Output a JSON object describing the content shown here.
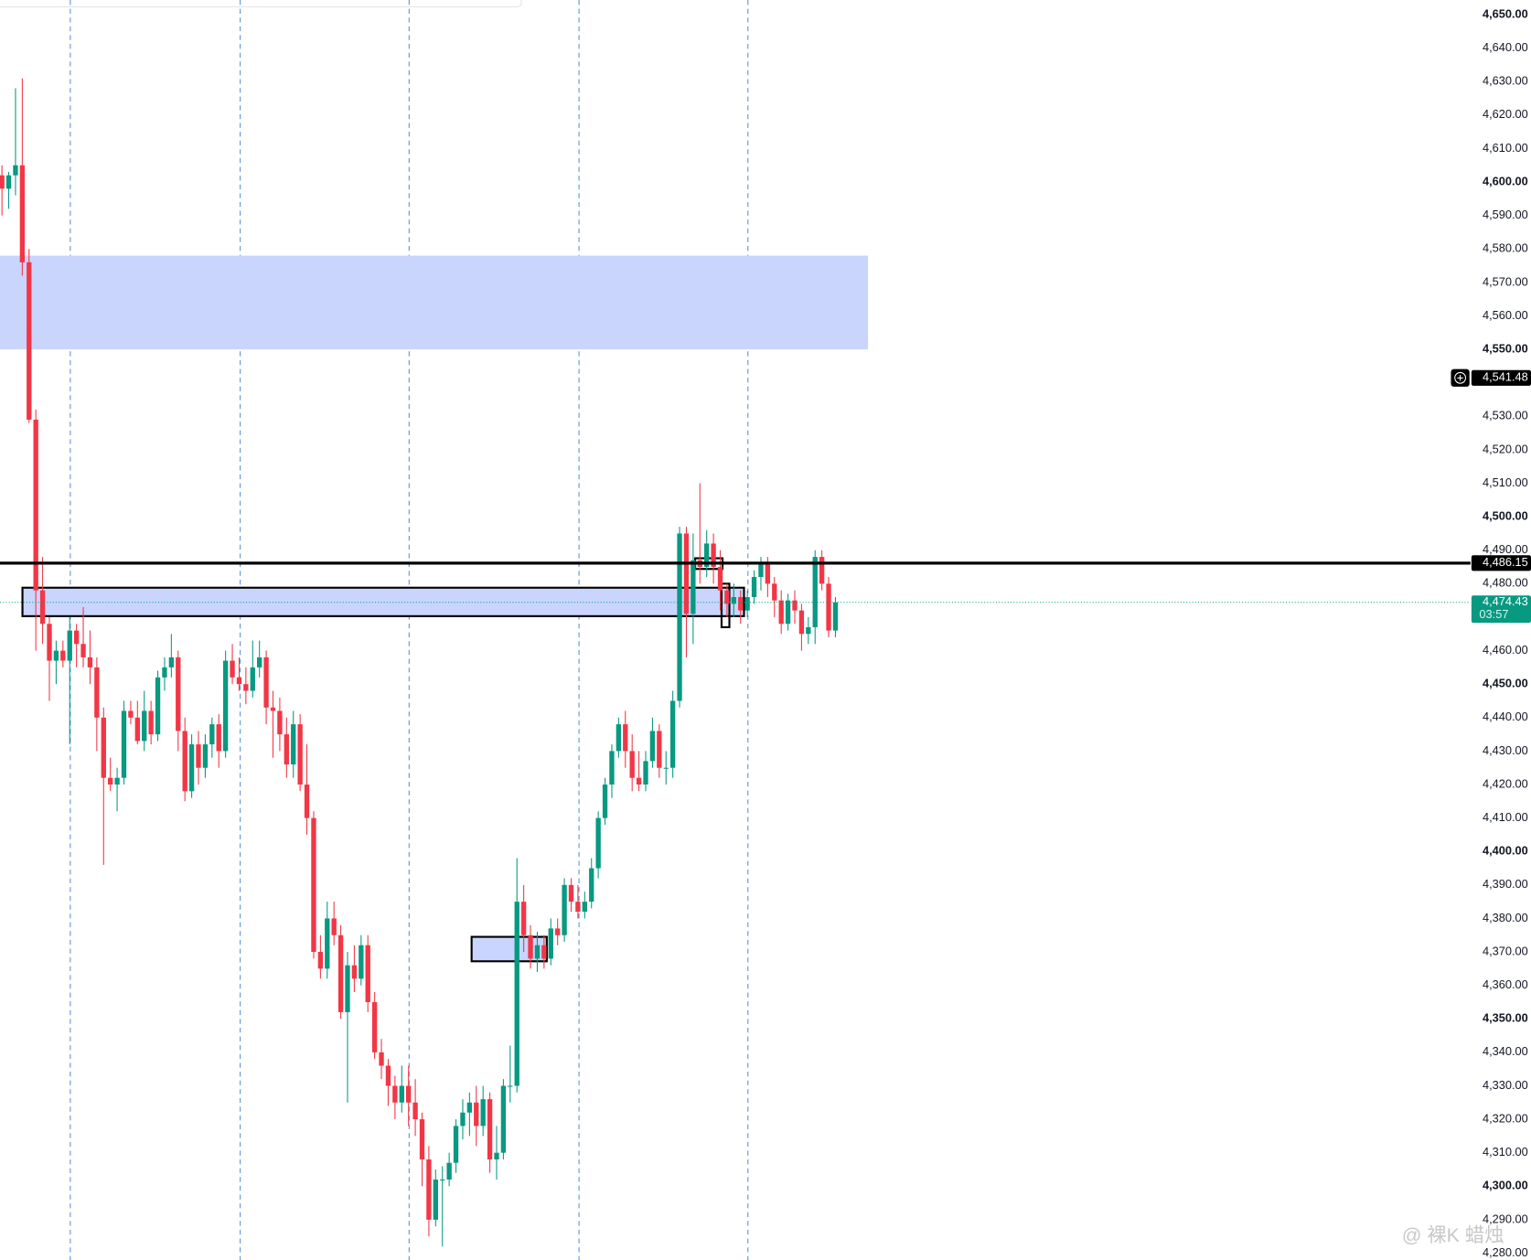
{
  "chart_data": {
    "type": "candlestick",
    "ylim": [
      4280,
      4650
    ],
    "yticks": [
      {
        "value": 4650,
        "label": "4,650.00"
      },
      {
        "value": 4640,
        "label": "4,640.00"
      },
      {
        "value": 4630,
        "label": "4,630.00"
      },
      {
        "value": 4620,
        "label": "4,620.00"
      },
      {
        "value": 4610,
        "label": "4,610.00"
      },
      {
        "value": 4600,
        "label": "4,600.00"
      },
      {
        "value": 4590,
        "label": "4,590.00"
      },
      {
        "value": 4580,
        "label": "4,580.00"
      },
      {
        "value": 4570,
        "label": "4,570.00"
      },
      {
        "value": 4560,
        "label": "4,560.00"
      },
      {
        "value": 4550,
        "label": "4,550.00"
      },
      {
        "value": 4530,
        "label": "4,530.00"
      },
      {
        "value": 4520,
        "label": "4,520.00"
      },
      {
        "value": 4510,
        "label": "4,510.00"
      },
      {
        "value": 4500,
        "label": "4,500.00"
      },
      {
        "value": 4490,
        "label": "4,490.00"
      },
      {
        "value": 4480,
        "label": "4,480.00"
      },
      {
        "value": 4460,
        "label": "4,460.00"
      },
      {
        "value": 4450,
        "label": "4,450.00"
      },
      {
        "value": 4440,
        "label": "4,440.00"
      },
      {
        "value": 4430,
        "label": "4,430.00"
      },
      {
        "value": 4420,
        "label": "4,420.00"
      },
      {
        "value": 4410,
        "label": "4,410.00"
      },
      {
        "value": 4400,
        "label": "4,400.00"
      },
      {
        "value": 4390,
        "label": "4,390.00"
      },
      {
        "value": 4380,
        "label": "4,380.00"
      },
      {
        "value": 4370,
        "label": "4,370.00"
      },
      {
        "value": 4360,
        "label": "4,360.00"
      },
      {
        "value": 4350,
        "label": "4,350.00"
      },
      {
        "value": 4340,
        "label": "4,340.00"
      },
      {
        "value": 4330,
        "label": "4,330.00"
      },
      {
        "value": 4320,
        "label": "4,320.00"
      },
      {
        "value": 4310,
        "label": "4,310.00"
      },
      {
        "value": 4300,
        "label": "4,300.00"
      },
      {
        "value": 4290,
        "label": "4,290.00"
      },
      {
        "value": 4280,
        "label": "4,280.00"
      }
    ],
    "grid": false,
    "up_color": "#089981",
    "down_color": "#f23645",
    "zone_color": "#c9d5fc",
    "candles": [
      [
        4602,
        4605,
        4590,
        4598
      ],
      [
        4598,
        4603,
        4592,
        4602
      ],
      [
        4602,
        4628,
        4596,
        4605
      ],
      [
        4605,
        4631,
        4572,
        4576
      ],
      [
        4576,
        4580,
        4528,
        4529
      ],
      [
        4529,
        4532,
        4460,
        4478
      ],
      [
        4478,
        4488,
        4462,
        4468
      ],
      [
        4468,
        4470,
        4445,
        4457
      ],
      [
        4457,
        4463,
        4450,
        4460
      ],
      [
        4460,
        4463,
        4455,
        4457
      ],
      [
        4457,
        4470,
        4432,
        4466
      ],
      [
        4466,
        4468,
        4455,
        4462
      ],
      [
        4462,
        4473,
        4455,
        4458
      ],
      [
        4458,
        4466,
        4450,
        4455
      ],
      [
        4455,
        4458,
        4430,
        4440
      ],
      [
        4440,
        4443,
        4396,
        4422
      ],
      [
        4422,
        4428,
        4418,
        4420
      ],
      [
        4420,
        4425,
        4412,
        4422
      ],
      [
        4422,
        4445,
        4420,
        4442
      ],
      [
        4442,
        4445,
        4438,
        4440
      ],
      [
        4440,
        4445,
        4432,
        4433
      ],
      [
        4433,
        4448,
        4430,
        4442
      ],
      [
        4442,
        4445,
        4432,
        4435
      ],
      [
        4435,
        4454,
        4433,
        4452
      ],
      [
        4452,
        4458,
        4448,
        4455
      ],
      [
        4455,
        4465,
        4452,
        4458
      ],
      [
        4458,
        4460,
        4430,
        4436
      ],
      [
        4436,
        4440,
        4415,
        4418
      ],
      [
        4418,
        4435,
        4416,
        4432
      ],
      [
        4432,
        4436,
        4420,
        4425
      ],
      [
        4425,
        4435,
        4422,
        4432
      ],
      [
        4432,
        4440,
        4428,
        4438
      ],
      [
        4438,
        4441,
        4425,
        4430
      ],
      [
        4430,
        4460,
        4428,
        4457
      ],
      [
        4457,
        4462,
        4450,
        4452
      ],
      [
        4452,
        4458,
        4448,
        4450
      ],
      [
        4450,
        4455,
        4444,
        4448
      ],
      [
        4448,
        4463,
        4446,
        4455
      ],
      [
        4455,
        4463,
        4452,
        4458
      ],
      [
        4458,
        4460,
        4438,
        4443
      ],
      [
        4443,
        4448,
        4428,
        4442
      ],
      [
        4442,
        4446,
        4430,
        4435
      ],
      [
        4435,
        4440,
        4422,
        4426
      ],
      [
        4426,
        4442,
        4422,
        4438
      ],
      [
        4438,
        4441,
        4418,
        4420
      ],
      [
        4420,
        4432,
        4405,
        4410
      ],
      [
        4410,
        4412,
        4368,
        4370
      ],
      [
        4370,
        4375,
        4362,
        4365
      ],
      [
        4365,
        4385,
        4362,
        4380
      ],
      [
        4380,
        4385,
        4372,
        4375
      ],
      [
        4375,
        4378,
        4350,
        4352
      ],
      [
        4352,
        4370,
        4325,
        4366
      ],
      [
        4366,
        4372,
        4358,
        4362
      ],
      [
        4362,
        4375,
        4360,
        4372
      ],
      [
        4372,
        4375,
        4352,
        4355
      ],
      [
        4355,
        4358,
        4338,
        4340
      ],
      [
        4340,
        4344,
        4332,
        4336
      ],
      [
        4336,
        4338,
        4324,
        4330
      ],
      [
        4330,
        4333,
        4320,
        4325
      ],
      [
        4325,
        4336,
        4322,
        4330
      ],
      [
        4330,
        4336,
        4318,
        4325
      ],
      [
        4325,
        4332,
        4315,
        4320
      ],
      [
        4320,
        4322,
        4300,
        4308
      ],
      [
        4308,
        4312,
        4285,
        4290
      ],
      [
        4290,
        4305,
        4288,
        4302
      ],
      [
        4302,
        4306,
        4282,
        4302
      ],
      [
        4302,
        4310,
        4300,
        4307
      ],
      [
        4307,
        4320,
        4304,
        4318
      ],
      [
        4318,
        4326,
        4314,
        4322
      ],
      [
        4322,
        4328,
        4315,
        4325
      ],
      [
        4325,
        4330,
        4312,
        4318
      ],
      [
        4318,
        4330,
        4315,
        4326
      ],
      [
        4326,
        4328,
        4304,
        4308
      ],
      [
        4308,
        4318,
        4302,
        4310
      ],
      [
        4310,
        4332,
        4308,
        4330
      ],
      [
        4330,
        4342,
        4325,
        4330
      ],
      [
        4330,
        4398,
        4328,
        4385
      ],
      [
        4385,
        4390,
        4370,
        4375
      ],
      [
        4375,
        4378,
        4365,
        4368
      ],
      [
        4368,
        4376,
        4364,
        4372
      ],
      [
        4372,
        4375,
        4365,
        4368
      ],
      [
        4368,
        4380,
        4366,
        4377
      ],
      [
        4377,
        4380,
        4372,
        4375
      ],
      [
        4375,
        4392,
        4373,
        4390
      ],
      [
        4390,
        4392,
        4382,
        4385
      ],
      [
        4385,
        4390,
        4380,
        4382
      ],
      [
        4382,
        4388,
        4380,
        4385
      ],
      [
        4385,
        4398,
        4383,
        4395
      ],
      [
        4395,
        4412,
        4392,
        4410
      ],
      [
        4410,
        4422,
        4408,
        4420
      ],
      [
        4420,
        4432,
        4416,
        4430
      ],
      [
        4430,
        4440,
        4428,
        4438
      ],
      [
        4438,
        4442,
        4425,
        4430
      ],
      [
        4430,
        4435,
        4418,
        4422
      ],
      [
        4422,
        4430,
        4418,
        4420
      ],
      [
        4420,
        4430,
        4418,
        4427
      ],
      [
        4427,
        4440,
        4425,
        4436
      ],
      [
        4436,
        4438,
        4422,
        4425
      ],
      [
        4425,
        4430,
        4420,
        4425
      ],
      [
        4425,
        4448,
        4422,
        4445
      ],
      [
        4445,
        4497,
        4443,
        4495
      ],
      [
        4495,
        4497,
        4458,
        4471
      ],
      [
        4471,
        4495,
        4462,
        4487
      ],
      [
        4487,
        4510,
        4480,
        4485
      ],
      [
        4485,
        4496,
        4482,
        4492
      ],
      [
        4492,
        4495,
        4480,
        4485
      ],
      [
        4485,
        4490,
        4472,
        4478
      ],
      [
        4478,
        4480,
        4470,
        4474
      ],
      [
        4474,
        4480,
        4470,
        4476
      ],
      [
        4476,
        4478,
        4468,
        4472
      ],
      [
        4472,
        4478,
        4470,
        4476
      ],
      [
        4476,
        4484,
        4474,
        4482
      ],
      [
        4482,
        4488,
        4478,
        4486
      ],
      [
        4486,
        4488,
        4476,
        4480
      ],
      [
        4480,
        4482,
        4470,
        4475
      ],
      [
        4475,
        4478,
        4465,
        4468
      ],
      [
        4468,
        4477,
        4466,
        4475
      ],
      [
        4475,
        4478,
        4468,
        4472
      ],
      [
        4472,
        4474,
        4460,
        4465
      ],
      [
        4465,
        4470,
        4462,
        4467
      ],
      [
        4467,
        4490,
        4462,
        4488
      ],
      [
        4488,
        4490,
        4478,
        4480
      ],
      [
        4480,
        4482,
        4464,
        4466
      ],
      [
        4466,
        4476,
        4464,
        4474.43
      ]
    ],
    "zones": [
      {
        "top": 4578,
        "bottom": 4550
      },
      {
        "top": 4478.8,
        "bottom": 4470.3
      },
      {
        "top": 4374.5,
        "bottom": 4367.2
      },
      {
        "top": 4487.6,
        "bottom": 4484.4
      },
      {
        "top": 4480,
        "bottom": 4467
      }
    ],
    "horizontal_line": {
      "value": 4486.15,
      "label": "4,486.15"
    },
    "alert_price": {
      "value": 4541.48,
      "label": "4,541.48"
    },
    "last_price": {
      "value": 4474.43,
      "label": "4,474.43",
      "countdown": "03:57"
    },
    "watermark": "@ 裸K 蜡烛"
  }
}
